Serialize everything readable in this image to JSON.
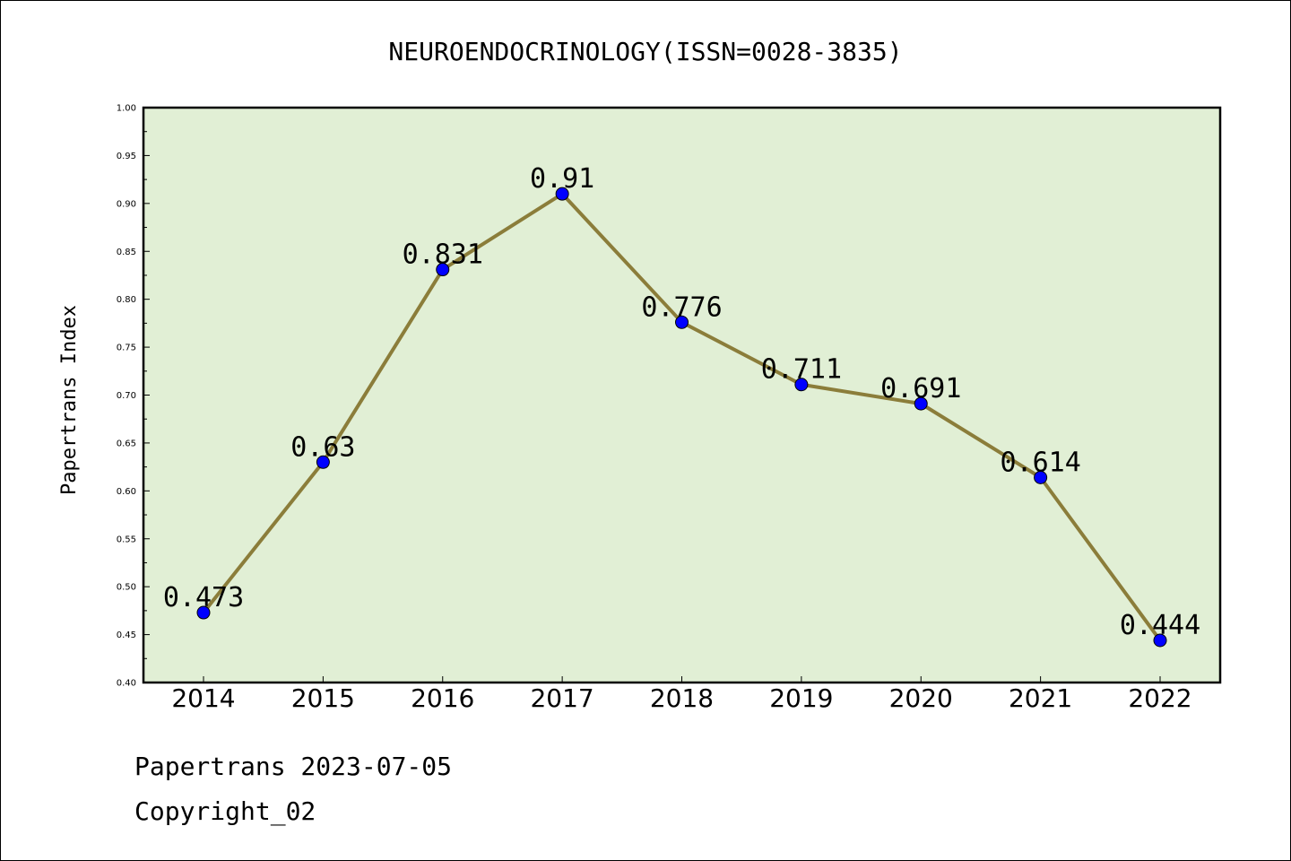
{
  "chart_data": {
    "type": "line",
    "title": "NEUROENDOCRINOLOGY(ISSN=0028-3835)",
    "xlabel": "",
    "ylabel": "Papertrans Index",
    "categories": [
      "2014",
      "2015",
      "2016",
      "2017",
      "2018",
      "2019",
      "2020",
      "2021",
      "2022"
    ],
    "series": [
      {
        "values": [
          0.473,
          0.63,
          0.831,
          0.91,
          0.776,
          0.711,
          0.691,
          0.614,
          0.444
        ],
        "labels": [
          "0.473",
          "0.63",
          "0.831",
          "0.91",
          "0.776",
          "0.711",
          "0.691",
          "0.614",
          "0.444"
        ],
        "line_color": "#8b7d3a",
        "marker_color": "#0000ff"
      }
    ],
    "ylim": [
      0.4,
      1.0
    ],
    "yticks": [
      "0.40",
      "0.45",
      "0.50",
      "0.55",
      "0.60",
      "0.65",
      "0.70",
      "0.75",
      "0.80",
      "0.85",
      "0.90",
      "0.95",
      "1.00"
    ],
    "grid": false,
    "plot_background": "#e1efd5"
  },
  "footer": {
    "line1": "Papertrans 2023-07-05",
    "line2": "Copyright_02"
  }
}
